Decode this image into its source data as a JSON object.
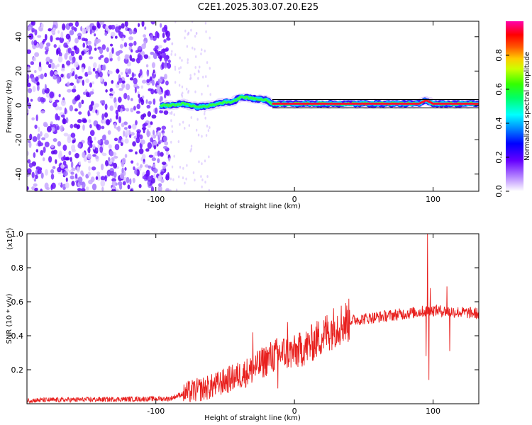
{
  "title": "C2E1.2025.303.07.20.E25",
  "colors": {
    "snr_line": "#e8201e",
    "axis": "#000000",
    "background": "#ffffff"
  },
  "chart_data": [
    {
      "type": "heatmap",
      "name": "spectrogram",
      "xlabel": "Height of straight line (km)",
      "ylabel": "Frequency (Hz)",
      "xlim": [
        -193,
        133
      ],
      "ylim": [
        -50,
        49
      ],
      "x_ticks": [
        -100,
        0,
        100
      ],
      "x_tick_labels": [
        "-100",
        "0",
        "100"
      ],
      "y_ticks": [
        40,
        20,
        0,
        -20,
        -40
      ],
      "y_tick_labels": [
        "40",
        "20",
        "0",
        "-20",
        "-40"
      ],
      "noise_region_x": [
        -193,
        -90
      ],
      "signal_start_x": -97,
      "signal_trace": [
        {
          "x": -97,
          "y": 0
        },
        {
          "x": -90,
          "y": 0
        },
        {
          "x": -80,
          "y": 1
        },
        {
          "x": -70,
          "y": -1
        },
        {
          "x": -60,
          "y": 0
        },
        {
          "x": -50,
          "y": 2
        },
        {
          "x": -45,
          "y": 2
        },
        {
          "x": -38,
          "y": 5
        },
        {
          "x": -30,
          "y": 4
        },
        {
          "x": -20,
          "y": 3
        },
        {
          "x": -16,
          "y": 1
        },
        {
          "x": 0,
          "y": 1
        },
        {
          "x": 20,
          "y": 1
        },
        {
          "x": 60,
          "y": 1
        },
        {
          "x": 90,
          "y": 1
        },
        {
          "x": 95,
          "y": 3
        },
        {
          "x": 100,
          "y": 1
        },
        {
          "x": 133,
          "y": 1
        }
      ],
      "colorbar": {
        "label": "Normalized spectral amplitude",
        "ticks": [
          0.0,
          0.2,
          0.4,
          0.6,
          0.8
        ],
        "tick_labels": [
          "0.0",
          "0.2",
          "0.4",
          "0.6",
          "0.8"
        ],
        "range": [
          0,
          1
        ]
      }
    },
    {
      "type": "line",
      "name": "snr",
      "xlabel": "Height of straight line (km)",
      "ylabel": "SNR (10 * v/v)",
      "y_multiplier": "(x10",
      "y_multiplier_exp": "4",
      "y_multiplier_close": ")",
      "xlim": [
        -193,
        133
      ],
      "ylim": [
        0,
        1.0
      ],
      "x_ticks": [
        -100,
        0,
        100
      ],
      "x_tick_labels": [
        "-100",
        "0",
        "100"
      ],
      "y_ticks": [
        0.2,
        0.4,
        0.6,
        0.8,
        1.0
      ],
      "y_tick_labels": [
        "0.2",
        "0.4",
        "0.6",
        "0.8",
        "1.0"
      ],
      "trend": [
        {
          "x": -193,
          "y": 0.02
        },
        {
          "x": -90,
          "y": 0.03
        },
        {
          "x": -80,
          "y": 0.06
        },
        {
          "x": -60,
          "y": 0.1
        },
        {
          "x": -45,
          "y": 0.15
        },
        {
          "x": -30,
          "y": 0.2
        },
        {
          "x": -20,
          "y": 0.26
        },
        {
          "x": -10,
          "y": 0.3
        },
        {
          "x": 0,
          "y": 0.3
        },
        {
          "x": 10,
          "y": 0.34
        },
        {
          "x": 20,
          "y": 0.4
        },
        {
          "x": 30,
          "y": 0.46
        },
        {
          "x": 40,
          "y": 0.49
        },
        {
          "x": 60,
          "y": 0.51
        },
        {
          "x": 80,
          "y": 0.53
        },
        {
          "x": 100,
          "y": 0.55
        },
        {
          "x": 133,
          "y": 0.53
        }
      ],
      "spikes": [
        {
          "x": 96,
          "y": 1.0
        },
        {
          "x": 97,
          "y": 0.14
        },
        {
          "x": 95,
          "y": 0.28
        },
        {
          "x": 98,
          "y": 0.68
        },
        {
          "x": 110,
          "y": 0.69
        },
        {
          "x": 112,
          "y": 0.31
        },
        {
          "x": -30,
          "y": 0.42
        },
        {
          "x": -5,
          "y": 0.48
        },
        {
          "x": -12,
          "y": 0.09
        }
      ]
    }
  ]
}
